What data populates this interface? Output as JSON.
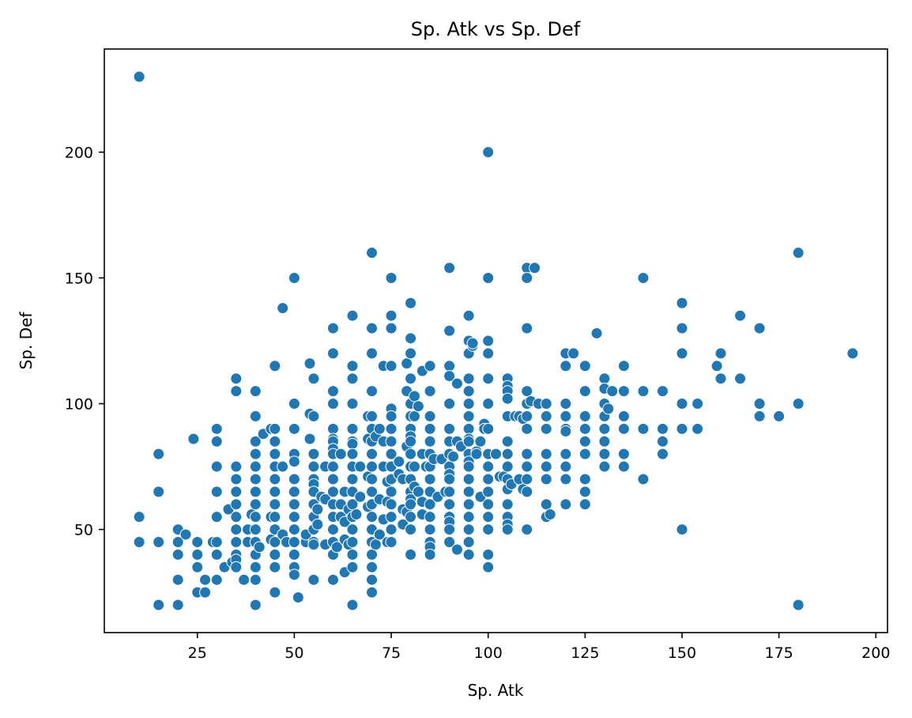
{
  "chart_data": {
    "type": "scatter",
    "title": "Sp. Atk vs Sp. Def",
    "xlabel": "Sp. Atk",
    "ylabel": "Sp. Def",
    "xlim": [
      1,
      203
    ],
    "ylim": [
      9,
      241
    ],
    "x_ticks": [
      25,
      50,
      75,
      100,
      125,
      150,
      175,
      200
    ],
    "y_ticks": [
      50,
      100,
      150,
      200
    ],
    "grid": false,
    "legend": "none",
    "colors": {
      "marker_fill": "#1f77b4",
      "marker_edge": "#ffffff",
      "axes": "#000000",
      "background": "#ffffff"
    },
    "points": [
      [
        10,
        230
      ],
      [
        100,
        200
      ],
      [
        10,
        55
      ],
      [
        10,
        45
      ],
      [
        15,
        80
      ],
      [
        15,
        65
      ],
      [
        15,
        45
      ],
      [
        15,
        20
      ],
      [
        20,
        50
      ],
      [
        20,
        45
      ],
      [
        20,
        40
      ],
      [
        20,
        30
      ],
      [
        20,
        20
      ],
      [
        22,
        48
      ],
      [
        24,
        86
      ],
      [
        25,
        45
      ],
      [
        25,
        40
      ],
      [
        25,
        35
      ],
      [
        25,
        25
      ],
      [
        27,
        30
      ],
      [
        27,
        25
      ],
      [
        29,
        45
      ],
      [
        30,
        90
      ],
      [
        30,
        85
      ],
      [
        30,
        75
      ],
      [
        30,
        65
      ],
      [
        30,
        55
      ],
      [
        30,
        45
      ],
      [
        30,
        40
      ],
      [
        30,
        30
      ],
      [
        32,
        35
      ],
      [
        33,
        58
      ],
      [
        34,
        37
      ],
      [
        35,
        110
      ],
      [
        35,
        105
      ],
      [
        35,
        75
      ],
      [
        35,
        70
      ],
      [
        35,
        65
      ],
      [
        35,
        60
      ],
      [
        35,
        55
      ],
      [
        35,
        50
      ],
      [
        35,
        45
      ],
      [
        35,
        40
      ],
      [
        35,
        38
      ],
      [
        35,
        35
      ],
      [
        37,
        30
      ],
      [
        38,
        50
      ],
      [
        38,
        45
      ],
      [
        39,
        56
      ],
      [
        40,
        105
      ],
      [
        40,
        95
      ],
      [
        40,
        85
      ],
      [
        40,
        80
      ],
      [
        40,
        75
      ],
      [
        40,
        70
      ],
      [
        40,
        65
      ],
      [
        40,
        60
      ],
      [
        40,
        55
      ],
      [
        40,
        50
      ],
      [
        40,
        45
      ],
      [
        40,
        40
      ],
      [
        40,
        35
      ],
      [
        40,
        30
      ],
      [
        40,
        20
      ],
      [
        41,
        43
      ],
      [
        42,
        88
      ],
      [
        44,
        90
      ],
      [
        44,
        55
      ],
      [
        44,
        46
      ],
      [
        45,
        115
      ],
      [
        45,
        90
      ],
      [
        45,
        85
      ],
      [
        45,
        80
      ],
      [
        45,
        75
      ],
      [
        45,
        70
      ],
      [
        45,
        65
      ],
      [
        45,
        60
      ],
      [
        45,
        55
      ],
      [
        45,
        50
      ],
      [
        45,
        45
      ],
      [
        45,
        40
      ],
      [
        45,
        35
      ],
      [
        45,
        25
      ],
      [
        47,
        138
      ],
      [
        47,
        75
      ],
      [
        47,
        48
      ],
      [
        48,
        45
      ],
      [
        50,
        150
      ],
      [
        50,
        100
      ],
      [
        50,
        90
      ],
      [
        50,
        80
      ],
      [
        50,
        77
      ],
      [
        50,
        70
      ],
      [
        50,
        65
      ],
      [
        50,
        60
      ],
      [
        50,
        55
      ],
      [
        50,
        50
      ],
      [
        50,
        45
      ],
      [
        50,
        40
      ],
      [
        50,
        35
      ],
      [
        50,
        32
      ],
      [
        51,
        23
      ],
      [
        53,
        45
      ],
      [
        53,
        48
      ],
      [
        54,
        116
      ],
      [
        54,
        96
      ],
      [
        54,
        86
      ],
      [
        55,
        110
      ],
      [
        55,
        95
      ],
      [
        55,
        80
      ],
      [
        55,
        75
      ],
      [
        55,
        70
      ],
      [
        55,
        68
      ],
      [
        55,
        65
      ],
      [
        55,
        60
      ],
      [
        55,
        55
      ],
      [
        55,
        50
      ],
      [
        55,
        45
      ],
      [
        55,
        44
      ],
      [
        55,
        30
      ],
      [
        56,
        58
      ],
      [
        56,
        52
      ],
      [
        57,
        63
      ],
      [
        58,
        75
      ],
      [
        58,
        62
      ],
      [
        58,
        44
      ],
      [
        60,
        130
      ],
      [
        60,
        120
      ],
      [
        60,
        105
      ],
      [
        60,
        100
      ],
      [
        60,
        90
      ],
      [
        60,
        86
      ],
      [
        60,
        85
      ],
      [
        60,
        82
      ],
      [
        60,
        80
      ],
      [
        60,
        75
      ],
      [
        60,
        70
      ],
      [
        60,
        65
      ],
      [
        60,
        60
      ],
      [
        60,
        55
      ],
      [
        60,
        50
      ],
      [
        60,
        45
      ],
      [
        60,
        40
      ],
      [
        60,
        30
      ],
      [
        61,
        43
      ],
      [
        62,
        80
      ],
      [
        62,
        60
      ],
      [
        62,
        55
      ],
      [
        63,
        65
      ],
      [
        63,
        53
      ],
      [
        63,
        46
      ],
      [
        63,
        33
      ],
      [
        64,
        58
      ],
      [
        64,
        44
      ],
      [
        65,
        135
      ],
      [
        65,
        115
      ],
      [
        65,
        110
      ],
      [
        65,
        100
      ],
      [
        65,
        90
      ],
      [
        65,
        85
      ],
      [
        65,
        84
      ],
      [
        65,
        80
      ],
      [
        65,
        75
      ],
      [
        65,
        70
      ],
      [
        65,
        65
      ],
      [
        65,
        60
      ],
      [
        65,
        55
      ],
      [
        65,
        50
      ],
      [
        65,
        45
      ],
      [
        65,
        40
      ],
      [
        65,
        35
      ],
      [
        65,
        20
      ],
      [
        66,
        56
      ],
      [
        67,
        75
      ],
      [
        67,
        63
      ],
      [
        69,
        95
      ],
      [
        69,
        86
      ],
      [
        69,
        59
      ],
      [
        69,
        71
      ],
      [
        70,
        160
      ],
      [
        70,
        130
      ],
      [
        70,
        120
      ],
      [
        70,
        105
      ],
      [
        70,
        95
      ],
      [
        70,
        90
      ],
      [
        70,
        85
      ],
      [
        70,
        80
      ],
      [
        70,
        75
      ],
      [
        70,
        70
      ],
      [
        70,
        65
      ],
      [
        70,
        60
      ],
      [
        70,
        55
      ],
      [
        70,
        50
      ],
      [
        70,
        45
      ],
      [
        70,
        40
      ],
      [
        70,
        35
      ],
      [
        70,
        30
      ],
      [
        70,
        25
      ],
      [
        71,
        87
      ],
      [
        71,
        44
      ],
      [
        72,
        90
      ],
      [
        72,
        48
      ],
      [
        72,
        62
      ],
      [
        73,
        115
      ],
      [
        73,
        85
      ],
      [
        73,
        54
      ],
      [
        73,
        75
      ],
      [
        74,
        69
      ],
      [
        74,
        61
      ],
      [
        74,
        45
      ],
      [
        75,
        150
      ],
      [
        75,
        135
      ],
      [
        75,
        130
      ],
      [
        75,
        115
      ],
      [
        75,
        98
      ],
      [
        75,
        95
      ],
      [
        75,
        90
      ],
      [
        75,
        85
      ],
      [
        75,
        80
      ],
      [
        75,
        75
      ],
      [
        75,
        70
      ],
      [
        75,
        65
      ],
      [
        75,
        60
      ],
      [
        75,
        55
      ],
      [
        75,
        50
      ],
      [
        75,
        45
      ],
      [
        77,
        77
      ],
      [
        77,
        72
      ],
      [
        78,
        52
      ],
      [
        78,
        70
      ],
      [
        78,
        58
      ],
      [
        79,
        116
      ],
      [
        79,
        105
      ],
      [
        79,
        83
      ],
      [
        79,
        57
      ],
      [
        80,
        140
      ],
      [
        80,
        126
      ],
      [
        80,
        120
      ],
      [
        80,
        110
      ],
      [
        80,
        100
      ],
      [
        80,
        95
      ],
      [
        80,
        90
      ],
      [
        80,
        87
      ],
      [
        80,
        85
      ],
      [
        80,
        80
      ],
      [
        80,
        75
      ],
      [
        80,
        70
      ],
      [
        80,
        65
      ],
      [
        80,
        62
      ],
      [
        80,
        60
      ],
      [
        80,
        55
      ],
      [
        80,
        50
      ],
      [
        80,
        40
      ],
      [
        81,
        103
      ],
      [
        81,
        95
      ],
      [
        81,
        75
      ],
      [
        81,
        67
      ],
      [
        82,
        99
      ],
      [
        82,
        65
      ],
      [
        83,
        80
      ],
      [
        83,
        113
      ],
      [
        83,
        56
      ],
      [
        83,
        61
      ],
      [
        84,
        75
      ],
      [
        85,
        115
      ],
      [
        85,
        105
      ],
      [
        85,
        95
      ],
      [
        85,
        90
      ],
      [
        85,
        85
      ],
      [
        85,
        80
      ],
      [
        85,
        75
      ],
      [
        85,
        70
      ],
      [
        85,
        65
      ],
      [
        85,
        60
      ],
      [
        85,
        55
      ],
      [
        85,
        50
      ],
      [
        85,
        45
      ],
      [
        85,
        43
      ],
      [
        85,
        40
      ],
      [
        86,
        78
      ],
      [
        87,
        63
      ],
      [
        88,
        78
      ],
      [
        89,
        65
      ],
      [
        90,
        154
      ],
      [
        90,
        129
      ],
      [
        90,
        115
      ],
      [
        90,
        111
      ],
      [
        90,
        100
      ],
      [
        90,
        90
      ],
      [
        90,
        85
      ],
      [
        90,
        80
      ],
      [
        90,
        75
      ],
      [
        90,
        72
      ],
      [
        90,
        70
      ],
      [
        90,
        65
      ],
      [
        90,
        60
      ],
      [
        90,
        55
      ],
      [
        90,
        53
      ],
      [
        90,
        50
      ],
      [
        90,
        45
      ],
      [
        91,
        79
      ],
      [
        92,
        108
      ],
      [
        92,
        85
      ],
      [
        92,
        42
      ],
      [
        93,
        83
      ],
      [
        95,
        135
      ],
      [
        95,
        125
      ],
      [
        95,
        120
      ],
      [
        95,
        110
      ],
      [
        95,
        105
      ],
      [
        95,
        100
      ],
      [
        95,
        95
      ],
      [
        95,
        90
      ],
      [
        95,
        86
      ],
      [
        95,
        85
      ],
      [
        95,
        80
      ],
      [
        95,
        77
      ],
      [
        95,
        75
      ],
      [
        95,
        70
      ],
      [
        95,
        65
      ],
      [
        95,
        60
      ],
      [
        95,
        55
      ],
      [
        95,
        50
      ],
      [
        95,
        45
      ],
      [
        95,
        40
      ],
      [
        96,
        123
      ],
      [
        96,
        124
      ],
      [
        97,
        81
      ],
      [
        97,
        80
      ],
      [
        98,
        63
      ],
      [
        98,
        85
      ],
      [
        99,
        92
      ],
      [
        99,
        90
      ],
      [
        100,
        150
      ],
      [
        100,
        125
      ],
      [
        100,
        120
      ],
      [
        100,
        110
      ],
      [
        100,
        100
      ],
      [
        100,
        90
      ],
      [
        100,
        80
      ],
      [
        100,
        75
      ],
      [
        100,
        70
      ],
      [
        100,
        65
      ],
      [
        100,
        60
      ],
      [
        100,
        55
      ],
      [
        100,
        50
      ],
      [
        100,
        40
      ],
      [
        100,
        35
      ],
      [
        102,
        80
      ],
      [
        103,
        71
      ],
      [
        104,
        71
      ],
      [
        105,
        110
      ],
      [
        105,
        107
      ],
      [
        105,
        105
      ],
      [
        105,
        102
      ],
      [
        105,
        95
      ],
      [
        105,
        85
      ],
      [
        105,
        80
      ],
      [
        105,
        75
      ],
      [
        105,
        70
      ],
      [
        105,
        66
      ],
      [
        105,
        60
      ],
      [
        105,
        55
      ],
      [
        105,
        52
      ],
      [
        105,
        50
      ],
      [
        106,
        68
      ],
      [
        107,
        95
      ],
      [
        108,
        95
      ],
      [
        108,
        70
      ],
      [
        109,
        94
      ],
      [
        109,
        66
      ],
      [
        110,
        154
      ],
      [
        110,
        150
      ],
      [
        110,
        130
      ],
      [
        110,
        105
      ],
      [
        110,
        100
      ],
      [
        110,
        95
      ],
      [
        110,
        90
      ],
      [
        110,
        80
      ],
      [
        110,
        75
      ],
      [
        110,
        70
      ],
      [
        110,
        65
      ],
      [
        110,
        50
      ],
      [
        111,
        101
      ],
      [
        112,
        154
      ],
      [
        113,
        100
      ],
      [
        115,
        100
      ],
      [
        115,
        95
      ],
      [
        115,
        90
      ],
      [
        115,
        80
      ],
      [
        115,
        75
      ],
      [
        115,
        70
      ],
      [
        115,
        60
      ],
      [
        115,
        55
      ],
      [
        116,
        56
      ],
      [
        120,
        120
      ],
      [
        120,
        115
      ],
      [
        120,
        100
      ],
      [
        120,
        95
      ],
      [
        120,
        90
      ],
      [
        120,
        89
      ],
      [
        120,
        80
      ],
      [
        120,
        75
      ],
      [
        120,
        70
      ],
      [
        120,
        60
      ],
      [
        122,
        120
      ],
      [
        125,
        115
      ],
      [
        125,
        105
      ],
      [
        125,
        95
      ],
      [
        125,
        90
      ],
      [
        125,
        85
      ],
      [
        125,
        80
      ],
      [
        125,
        70
      ],
      [
        125,
        65
      ],
      [
        125,
        60
      ],
      [
        128,
        128
      ],
      [
        130,
        110
      ],
      [
        130,
        106
      ],
      [
        130,
        100
      ],
      [
        130,
        95
      ],
      [
        130,
        90
      ],
      [
        130,
        85
      ],
      [
        130,
        80
      ],
      [
        130,
        75
      ],
      [
        131,
        98
      ],
      [
        132,
        105
      ],
      [
        135,
        115
      ],
      [
        135,
        105
      ],
      [
        135,
        95
      ],
      [
        135,
        90
      ],
      [
        135,
        80
      ],
      [
        135,
        75
      ],
      [
        140,
        150
      ],
      [
        140,
        105
      ],
      [
        140,
        90
      ],
      [
        140,
        70
      ],
      [
        145,
        105
      ],
      [
        145,
        90
      ],
      [
        145,
        85
      ],
      [
        145,
        80
      ],
      [
        150,
        140
      ],
      [
        150,
        130
      ],
      [
        150,
        120
      ],
      [
        150,
        100
      ],
      [
        150,
        90
      ],
      [
        150,
        50
      ],
      [
        154,
        100
      ],
      [
        154,
        90
      ],
      [
        159,
        115
      ],
      [
        160,
        120
      ],
      [
        160,
        110
      ],
      [
        165,
        135
      ],
      [
        165,
        110
      ],
      [
        170,
        130
      ],
      [
        170,
        100
      ],
      [
        170,
        95
      ],
      [
        175,
        95
      ],
      [
        180,
        160
      ],
      [
        180,
        100
      ],
      [
        180,
        20
      ],
      [
        194,
        120
      ]
    ]
  }
}
